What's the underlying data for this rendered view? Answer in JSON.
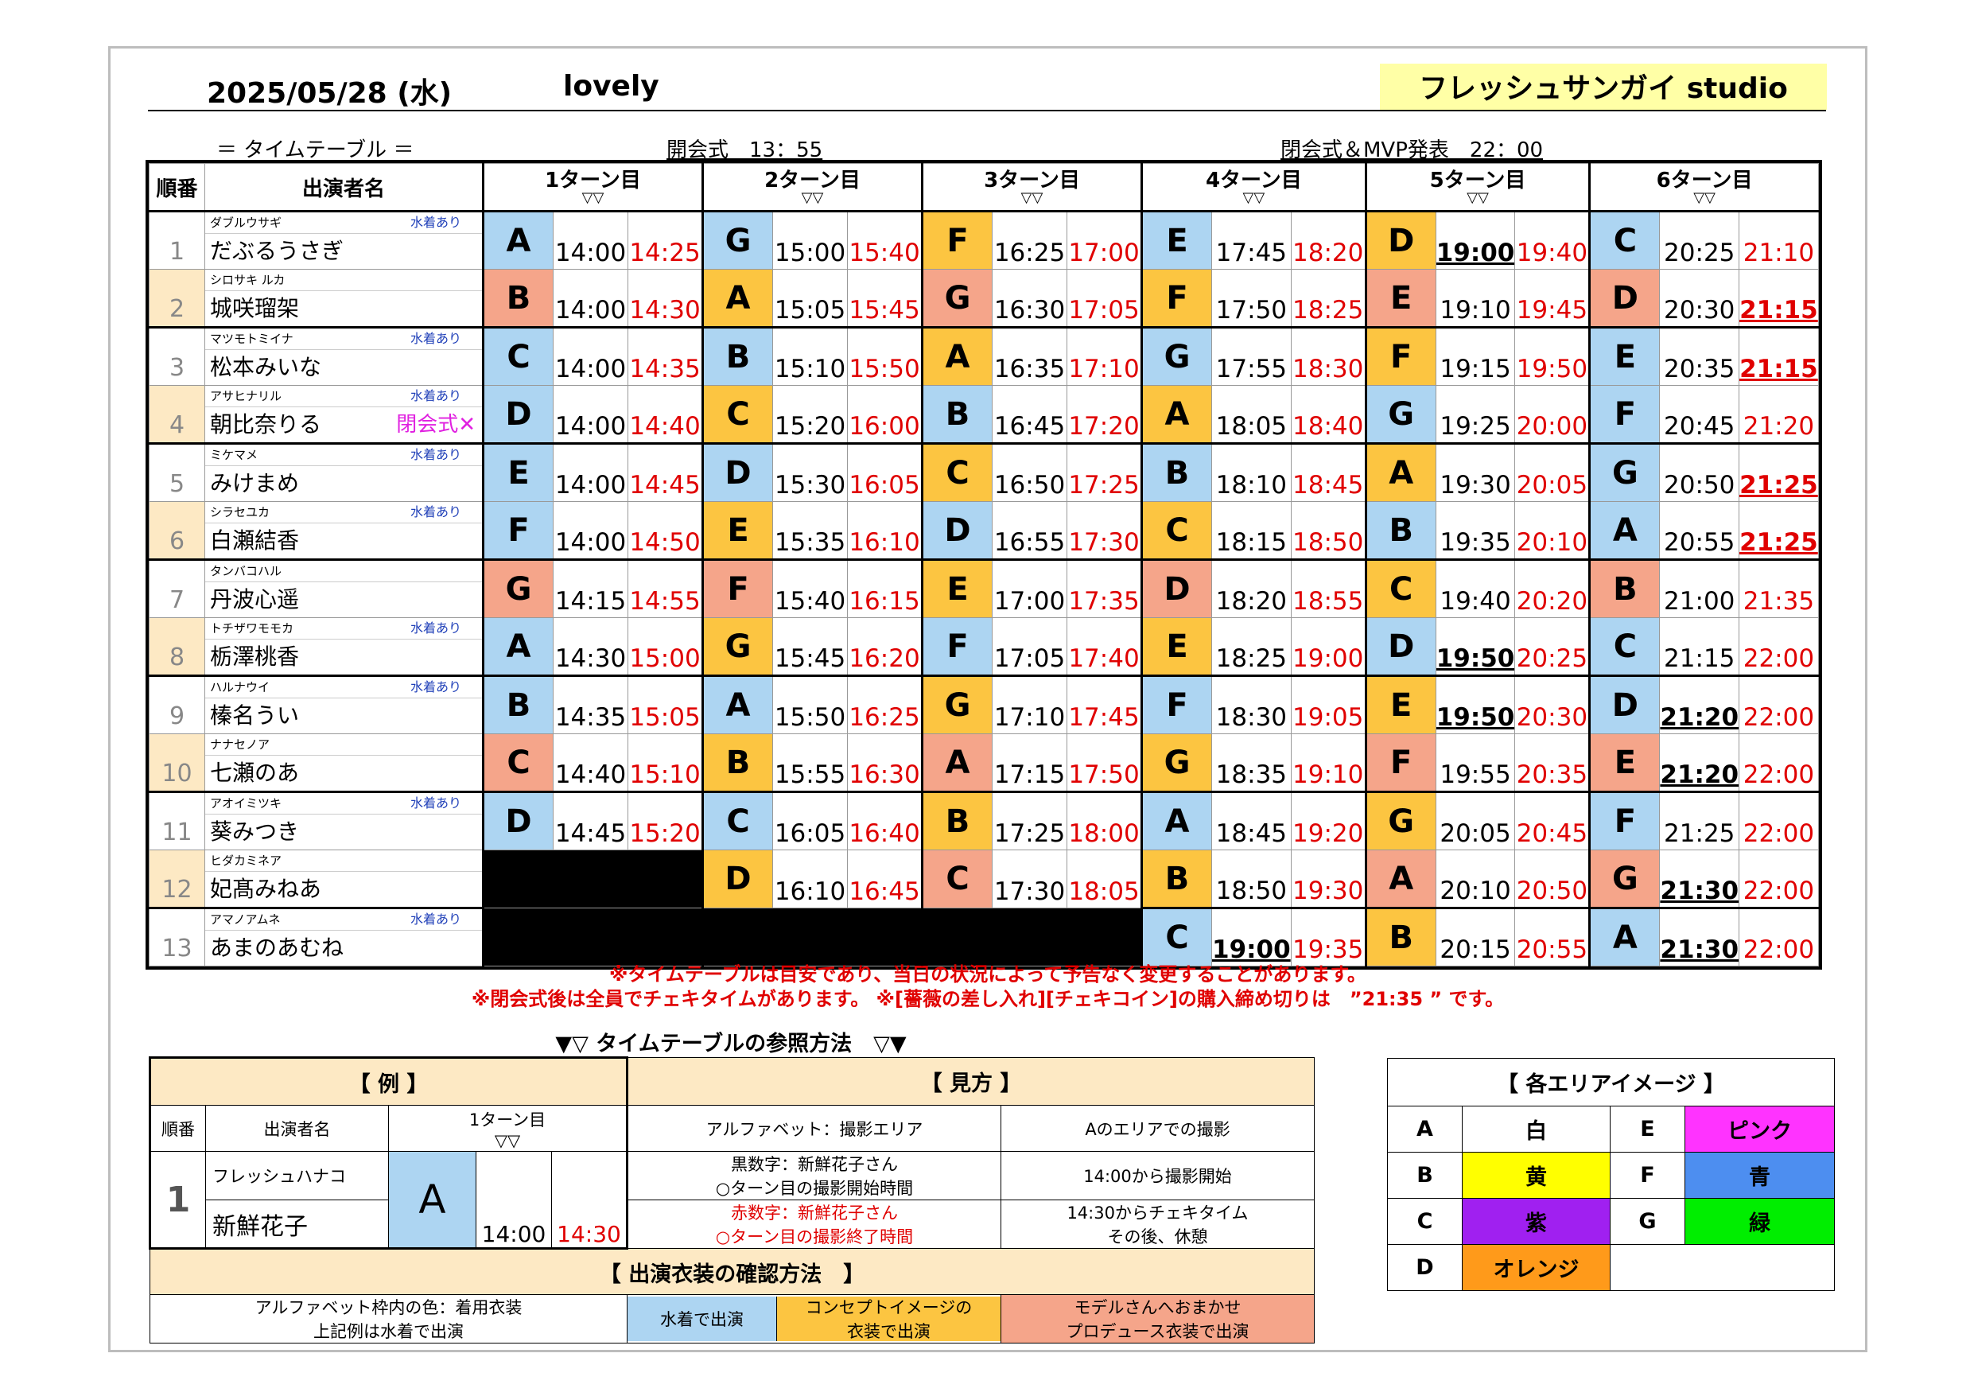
{
  "header": {
    "date": "2025/05/28 (水)",
    "title": "lovely",
    "studio": "フレッシュサンガイ studio"
  },
  "subheader": {
    "timetable": "＝ タイムテーブル ＝",
    "opening": "開会式　13：55",
    "closing": "閉会式＆MVP発表　22：00"
  },
  "table": {
    "col_no": "順番",
    "col_name": "出演者名",
    "arrow": "▽▽",
    "turns": [
      "1ターン目",
      "2ターン目",
      "3ターン目",
      "4ターン目",
      "5ターン目",
      "6ターン目"
    ],
    "rows": [
      {
        "no": "1",
        "kana": "ダブルウサギ",
        "swim": "水着あり",
        "name": "だぶるうさぎ",
        "note": "",
        "cells": [
          [
            "A",
            "sw",
            "14:00",
            "14:25"
          ],
          [
            "G",
            "sw",
            "15:00",
            "15:40"
          ],
          [
            "F",
            "co",
            "16:25",
            "17:00"
          ],
          [
            "E",
            "sw",
            "17:45",
            "18:20"
          ],
          [
            "D",
            "co",
            "19:00",
            "19:40",
            "b"
          ],
          [
            "C",
            "sw",
            "20:25",
            "21:10"
          ]
        ]
      },
      {
        "no": "2",
        "kana": "シロサキ ルカ",
        "swim": "",
        "name": "城咲瑠架",
        "note": "",
        "cells": [
          [
            "B",
            "mo",
            "14:00",
            "14:30"
          ],
          [
            "A",
            "co",
            "15:05",
            "15:45"
          ],
          [
            "G",
            "mo",
            "16:30",
            "17:05"
          ],
          [
            "F",
            "co",
            "17:50",
            "18:25"
          ],
          [
            "E",
            "mo",
            "19:10",
            "19:45"
          ],
          [
            "D",
            "mo",
            "20:30",
            "21:15",
            "",
            "b"
          ]
        ]
      },
      {
        "no": "3",
        "kana": "マツモトミイナ",
        "swim": "水着あり",
        "name": "松本みいな",
        "note": "",
        "cells": [
          [
            "C",
            "sw",
            "14:00",
            "14:35"
          ],
          [
            "B",
            "sw",
            "15:10",
            "15:50"
          ],
          [
            "A",
            "co",
            "16:35",
            "17:10"
          ],
          [
            "G",
            "sw",
            "17:55",
            "18:30"
          ],
          [
            "F",
            "co",
            "19:15",
            "19:50"
          ],
          [
            "E",
            "sw",
            "20:35",
            "21:15",
            "",
            "b"
          ]
        ]
      },
      {
        "no": "4",
        "kana": "アサヒナリル",
        "swim": "水着あり",
        "name": "朝比奈りる",
        "note": "閉会式✕",
        "cells": [
          [
            "D",
            "sw",
            "14:00",
            "14:40"
          ],
          [
            "C",
            "co",
            "15:20",
            "16:00"
          ],
          [
            "B",
            "sw",
            "16:45",
            "17:20"
          ],
          [
            "A",
            "co",
            "18:05",
            "18:40"
          ],
          [
            "G",
            "sw",
            "19:25",
            "20:00"
          ],
          [
            "F",
            "sw",
            "20:45",
            "21:20"
          ]
        ]
      },
      {
        "no": "5",
        "kana": "ミケマメ",
        "swim": "水着あり",
        "name": "みけまめ",
        "note": "",
        "cells": [
          [
            "E",
            "sw",
            "14:00",
            "14:45"
          ],
          [
            "D",
            "sw",
            "15:30",
            "16:05"
          ],
          [
            "C",
            "co",
            "16:50",
            "17:25"
          ],
          [
            "B",
            "sw",
            "18:10",
            "18:45"
          ],
          [
            "A",
            "co",
            "19:30",
            "20:05"
          ],
          [
            "G",
            "sw",
            "20:50",
            "21:25",
            "",
            "b"
          ]
        ]
      },
      {
        "no": "6",
        "kana": "シラセユカ",
        "swim": "水着あり",
        "name": "白瀬結香",
        "note": "",
        "cells": [
          [
            "F",
            "sw",
            "14:00",
            "14:50"
          ],
          [
            "E",
            "co",
            "15:35",
            "16:10"
          ],
          [
            "D",
            "sw",
            "16:55",
            "17:30"
          ],
          [
            "C",
            "co",
            "18:15",
            "18:50"
          ],
          [
            "B",
            "sw",
            "19:35",
            "20:10"
          ],
          [
            "A",
            "sw",
            "20:55",
            "21:25",
            "",
            "b"
          ]
        ]
      },
      {
        "no": "7",
        "kana": "タンバコハル",
        "swim": "",
        "name": "丹波心遥",
        "note": "",
        "cells": [
          [
            "G",
            "mo",
            "14:15",
            "14:55"
          ],
          [
            "F",
            "mo",
            "15:40",
            "16:15"
          ],
          [
            "E",
            "co",
            "17:00",
            "17:35"
          ],
          [
            "D",
            "mo",
            "18:20",
            "18:55"
          ],
          [
            "C",
            "co",
            "19:40",
            "20:20"
          ],
          [
            "B",
            "mo",
            "21:00",
            "21:35"
          ]
        ]
      },
      {
        "no": "8",
        "kana": "トチザワモモカ",
        "swim": "水着あり",
        "name": "栃澤桃香",
        "note": "",
        "cells": [
          [
            "A",
            "sw",
            "14:30",
            "15:00"
          ],
          [
            "G",
            "co",
            "15:45",
            "16:20"
          ],
          [
            "F",
            "sw",
            "17:05",
            "17:40"
          ],
          [
            "E",
            "co",
            "18:25",
            "19:00"
          ],
          [
            "D",
            "sw",
            "19:50",
            "20:25",
            "b"
          ],
          [
            "C",
            "sw",
            "21:15",
            "22:00"
          ]
        ]
      },
      {
        "no": "9",
        "kana": "ハルナウイ",
        "swim": "水着あり",
        "name": "榛名うい",
        "note": "",
        "cells": [
          [
            "B",
            "sw",
            "14:35",
            "15:05"
          ],
          [
            "A",
            "sw",
            "15:50",
            "16:25"
          ],
          [
            "G",
            "co",
            "17:10",
            "17:45"
          ],
          [
            "F",
            "sw",
            "18:30",
            "19:05"
          ],
          [
            "E",
            "co",
            "19:50",
            "20:30",
            "b"
          ],
          [
            "D",
            "sw",
            "21:20",
            "22:00",
            "b"
          ]
        ]
      },
      {
        "no": "10",
        "kana": "ナナセノア",
        "swim": "",
        "name": "七瀬のあ",
        "note": "",
        "cells": [
          [
            "C",
            "mo",
            "14:40",
            "15:10"
          ],
          [
            "B",
            "co",
            "15:55",
            "16:30"
          ],
          [
            "A",
            "mo",
            "17:15",
            "17:50"
          ],
          [
            "G",
            "co",
            "18:35",
            "19:10"
          ],
          [
            "F",
            "mo",
            "19:55",
            "20:35"
          ],
          [
            "E",
            "mo",
            "21:20",
            "22:00",
            "b"
          ]
        ]
      },
      {
        "no": "11",
        "kana": "アオイミツキ",
        "swim": "水着あり",
        "name": "葵みつき",
        "note": "",
        "cells": [
          [
            "D",
            "sw",
            "14:45",
            "15:20"
          ],
          [
            "C",
            "sw",
            "16:05",
            "16:40"
          ],
          [
            "B",
            "co",
            "17:25",
            "18:00"
          ],
          [
            "A",
            "sw",
            "18:45",
            "19:20"
          ],
          [
            "G",
            "co",
            "20:05",
            "20:45"
          ],
          [
            "F",
            "sw",
            "21:25",
            "22:00"
          ]
        ]
      },
      {
        "no": "12",
        "kana": "ヒダカミネア",
        "swim": "",
        "name": "妃髙みねあ",
        "note": "",
        "cells": [
          null,
          [
            "D",
            "co",
            "16:10",
            "16:45"
          ],
          [
            "C",
            "mo",
            "17:30",
            "18:05"
          ],
          [
            "B",
            "co",
            "18:50",
            "19:30"
          ],
          [
            "A",
            "mo",
            "20:10",
            "20:50"
          ],
          [
            "G",
            "mo",
            "21:30",
            "22:00",
            "b"
          ]
        ]
      },
      {
        "no": "13",
        "kana": "アマノアムネ",
        "swim": "水着あり",
        "name": "あまのあむね",
        "note": "",
        "cells": [
          null,
          null,
          null,
          [
            "C",
            "sw",
            "19:00",
            "19:35",
            "b"
          ],
          [
            "B",
            "co",
            "20:15",
            "20:55"
          ],
          [
            "A",
            "sw",
            "21:30",
            "22:00",
            "b"
          ]
        ]
      }
    ]
  },
  "warnings": {
    "line1": "※タイムテーブルは目安であり、当日の状況によって予告なく変更することがあります。",
    "line2": "※閉会式後は全員でチェキタイムがあります。 ※[薔薇の差し入れ][チェキコイン]の購入締め切りは　”21:35 ” です。"
  },
  "howto": {
    "title": "▼▽ タイムテーブルの参照方法　▽▼",
    "example_header": "【 例 】",
    "view_header": "【 見方 】",
    "col_no": "順番",
    "col_name": "出演者名",
    "turn": "1ターン目",
    "arrow": "▽▽",
    "alpha_label": "アルファベット：撮影エリア",
    "alpha_desc": "Aのエリアでの撮影",
    "kana": "フレッシュハナコ",
    "name": "新鮮花子",
    "no": "1",
    "area": "A",
    "start": "14:00",
    "end": "14:30",
    "black_label1": "黒数字：新鮮花子さん",
    "black_label2": "○ターン目の撮影開始時間",
    "black_desc": "14:00から撮影開始",
    "red_label1": "赤数字：新鮮花子さん",
    "red_label2": "○ターン目の撮影終了時間",
    "red_desc1": "14:30からチェキタイム",
    "red_desc2": "その後、休憩",
    "costume_header": "【 出演衣装の確認方法　】",
    "costume_text1": "アルファベット枠内の色：着用衣装",
    "costume_text2": "上記例は水着で出演",
    "swim": "水着で出演",
    "concept1": "コンセプトイメージの",
    "concept2": "衣装で出演",
    "model1": "モデルさんへおまかせ",
    "model2": "プロデュース衣装で出演"
  },
  "legend": {
    "title": "【 各エリアイメージ 】",
    "items": [
      {
        "key": "A",
        "label": "白",
        "color": "#ffffff"
      },
      {
        "key": "E",
        "label": "ピンク",
        "color": "#ff33ff"
      },
      {
        "key": "B",
        "label": "黄",
        "color": "#ffff00"
      },
      {
        "key": "F",
        "label": "青",
        "color": "#4d8ef0"
      },
      {
        "key": "C",
        "label": "紫",
        "color": "#a020f0"
      },
      {
        "key": "G",
        "label": "緑",
        "color": "#00ee00"
      },
      {
        "key": "D",
        "label": "オレンジ",
        "color": "#ff9a1a"
      }
    ]
  }
}
